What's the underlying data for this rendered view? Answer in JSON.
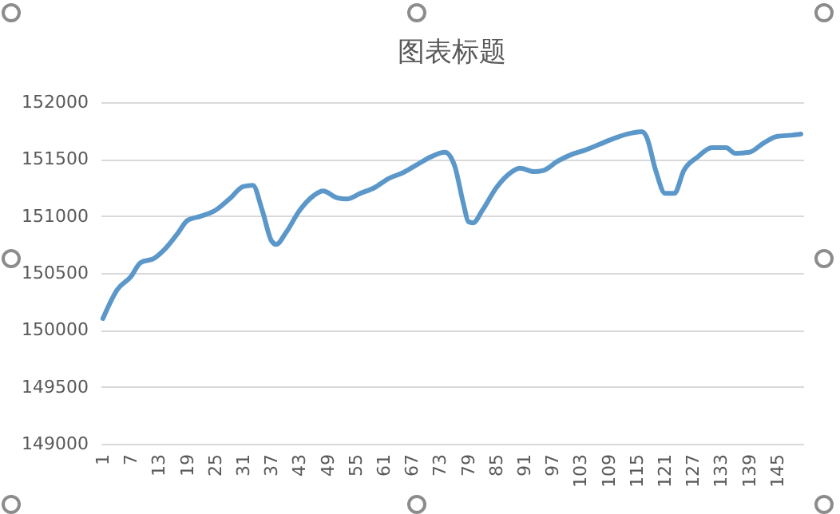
{
  "chart_data": {
    "type": "line",
    "title": "图表标题",
    "x": [
      1,
      4,
      7,
      9,
      12,
      14,
      17,
      19,
      22,
      25,
      28,
      31,
      33,
      35,
      37,
      38,
      40,
      43,
      46,
      48,
      51,
      53,
      56,
      59,
      62,
      65,
      68,
      71,
      74,
      76,
      78,
      79,
      80,
      82,
      85,
      88,
      90,
      93,
      95,
      98,
      101,
      104,
      107,
      110,
      113,
      116,
      117,
      119,
      121,
      123,
      125,
      128,
      131,
      134,
      136,
      139,
      142,
      145,
      148,
      150
    ],
    "series": [
      {
        "color": "#5b97c9",
        "values": [
          150100,
          150350,
          150470,
          150590,
          150630,
          150700,
          150850,
          150960,
          151000,
          151050,
          151150,
          151260,
          151270,
          151050,
          150780,
          150750,
          150850,
          151050,
          151180,
          151220,
          151160,
          151150,
          151200,
          151250,
          151330,
          151380,
          151450,
          151520,
          151560,
          151450,
          151100,
          150950,
          150940,
          151050,
          151250,
          151380,
          151420,
          151390,
          151400,
          151480,
          151540,
          151580,
          151630,
          151680,
          151720,
          151740,
          151700,
          151400,
          151200,
          151200,
          151400,
          151520,
          151600,
          151600,
          151550,
          151560,
          151640,
          151700,
          151710,
          151720
        ]
      }
    ],
    "xlim": [
      0.5,
      150.5
    ],
    "xticks": [
      1,
      7,
      13,
      19,
      25,
      31,
      37,
      43,
      49,
      55,
      61,
      67,
      73,
      79,
      85,
      91,
      97,
      103,
      109,
      115,
      121,
      127,
      133,
      139,
      145
    ],
    "ylim": [
      149000,
      152000
    ],
    "yticks": [
      149000,
      149500,
      150000,
      150500,
      151000,
      151500,
      152000
    ],
    "grid": "y"
  }
}
